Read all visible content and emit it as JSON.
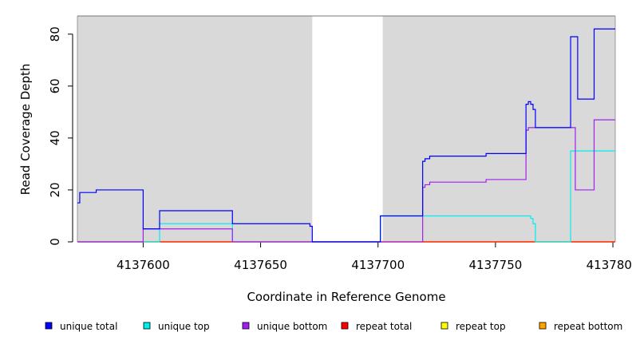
{
  "chart_data": {
    "type": "line",
    "title": "",
    "xlabel": "Coordinate in Reference Genome",
    "ylabel": "Read Coverage Depth",
    "xlim": [
      4137572,
      4137801
    ],
    "ylim": [
      0,
      87
    ],
    "xticks": [
      4137600,
      4137650,
      4137700,
      4137750,
      4137800
    ],
    "xtick_labels": [
      "4137600",
      "4137650",
      "4137700",
      "4137750",
      "4137800"
    ],
    "yticks": [
      0,
      20,
      40,
      60,
      80
    ],
    "ytick_labels": [
      "0",
      "20",
      "40",
      "60",
      "80"
    ],
    "background_color": "#d9d9d9",
    "shaded_regions": [
      [
        4137572,
        4137672
      ],
      [
        4137702,
        4137801
      ]
    ],
    "legend_position": "bottom",
    "series": [
      {
        "name": "unique total",
        "color": "#0000ff",
        "points": [
          [
            4137572,
            15
          ],
          [
            4137573,
            15
          ],
          [
            4137573,
            19
          ],
          [
            4137580,
            19
          ],
          [
            4137580,
            20
          ],
          [
            4137600,
            20
          ],
          [
            4137600,
            5
          ],
          [
            4137607,
            5
          ],
          [
            4137607,
            12
          ],
          [
            4137638,
            12
          ],
          [
            4137638,
            7
          ],
          [
            4137671,
            7
          ],
          [
            4137671,
            6
          ],
          [
            4137672,
            6
          ],
          [
            4137672,
            0
          ],
          [
            4137701,
            0
          ],
          [
            4137701,
            10
          ],
          [
            4137719,
            10
          ],
          [
            4137719,
            31
          ],
          [
            4137720,
            31
          ],
          [
            4137720,
            32
          ],
          [
            4137722,
            32
          ],
          [
            4137722,
            33
          ],
          [
            4137746,
            33
          ],
          [
            4137746,
            34
          ],
          [
            4137763,
            34
          ],
          [
            4137763,
            53
          ],
          [
            4137764,
            53
          ],
          [
            4137764,
            54
          ],
          [
            4137765,
            54
          ],
          [
            4137765,
            53
          ],
          [
            4137766,
            53
          ],
          [
            4137766,
            51
          ],
          [
            4137767,
            51
          ],
          [
            4137767,
            44
          ],
          [
            4137782,
            44
          ],
          [
            4137782,
            79
          ],
          [
            4137785,
            79
          ],
          [
            4137785,
            55
          ],
          [
            4137792,
            55
          ],
          [
            4137792,
            82
          ],
          [
            4137801,
            82
          ]
        ]
      },
      {
        "name": "unique top",
        "color": "#00eeee",
        "points": [
          [
            4137572,
            0
          ],
          [
            4137607,
            0
          ],
          [
            4137607,
            7
          ],
          [
            4137638,
            7
          ],
          [
            4137638,
            0
          ],
          [
            4137701,
            0
          ],
          [
            4137701,
            10
          ],
          [
            4137765,
            10
          ],
          [
            4137765,
            9
          ],
          [
            4137766,
            9
          ],
          [
            4137766,
            7
          ],
          [
            4137767,
            7
          ],
          [
            4137767,
            0
          ],
          [
            4137782,
            0
          ],
          [
            4137782,
            35
          ],
          [
            4137801,
            35
          ]
        ]
      },
      {
        "name": "unique bottom",
        "color": "#a020f0",
        "points": [
          [
            4137572,
            0
          ],
          [
            4137600,
            0
          ],
          [
            4137600,
            5
          ],
          [
            4137638,
            5
          ],
          [
            4137638,
            0
          ],
          [
            4137719,
            0
          ],
          [
            4137719,
            21
          ],
          [
            4137720,
            21
          ],
          [
            4137720,
            22
          ],
          [
            4137722,
            22
          ],
          [
            4137722,
            23
          ],
          [
            4137746,
            23
          ],
          [
            4137746,
            24
          ],
          [
            4137763,
            24
          ],
          [
            4137763,
            43
          ],
          [
            4137764,
            43
          ],
          [
            4137764,
            44
          ],
          [
            4137784,
            44
          ],
          [
            4137784,
            20
          ],
          [
            4137792,
            20
          ],
          [
            4137792,
            47
          ],
          [
            4137801,
            47
          ]
        ]
      },
      {
        "name": "repeat total",
        "color": "#ff0000",
        "points": [
          [
            4137572,
            0
          ],
          [
            4137801,
            0
          ]
        ]
      },
      {
        "name": "repeat top",
        "color": "#ffff00",
        "points": [
          [
            4137572,
            0
          ],
          [
            4137801,
            0
          ]
        ]
      },
      {
        "name": "repeat bottom",
        "color": "#ffa500",
        "points": [
          [
            4137572,
            0
          ],
          [
            4137801,
            0
          ]
        ]
      }
    ]
  }
}
